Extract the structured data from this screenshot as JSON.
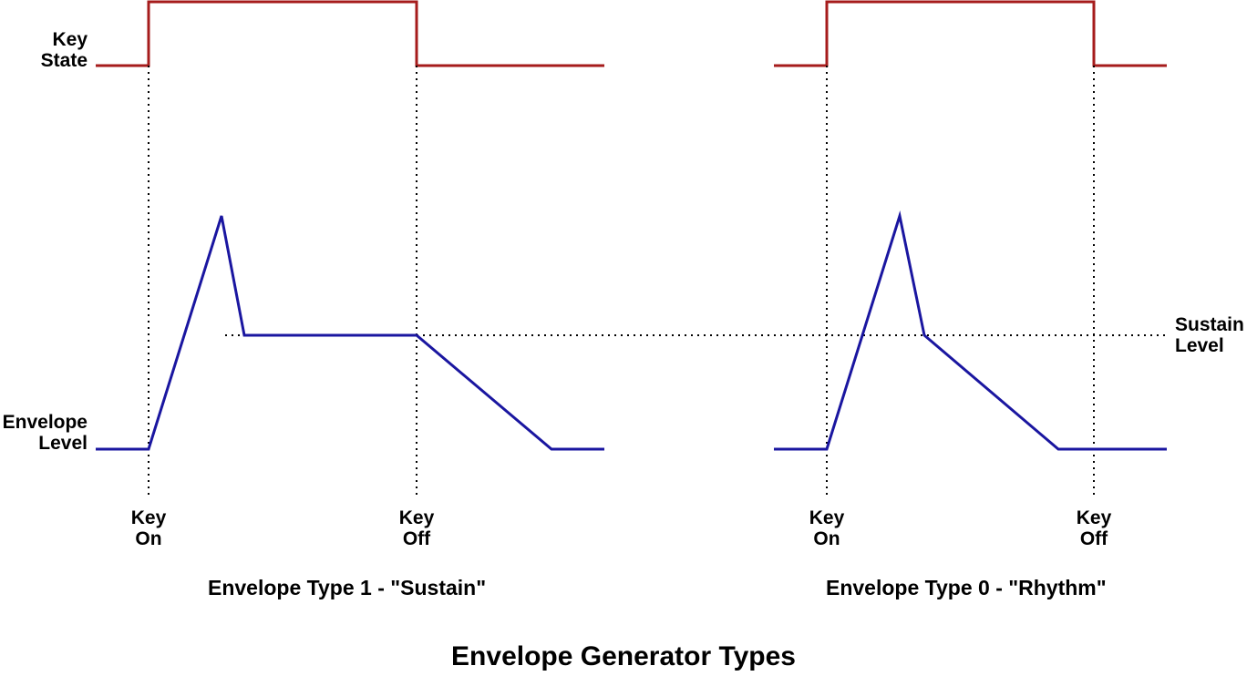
{
  "colors": {
    "key_state": "#a61c1c",
    "envelope": "#1a16a0",
    "guide": "#000000"
  },
  "labels": {
    "key_state": [
      "Key",
      "State"
    ],
    "envelope_level": [
      "Envelope",
      "Level"
    ],
    "sustain_level": [
      "Sustain",
      "Level"
    ],
    "key_on": [
      "Key",
      "On"
    ],
    "key_off": [
      "Key",
      "Off"
    ]
  },
  "diagrams": [
    {
      "caption": "Envelope Type 1 - \"Sustain\""
    },
    {
      "caption": "Envelope Type 0 - \"Rhythm\""
    }
  ],
  "title": "Envelope Generator Types"
}
